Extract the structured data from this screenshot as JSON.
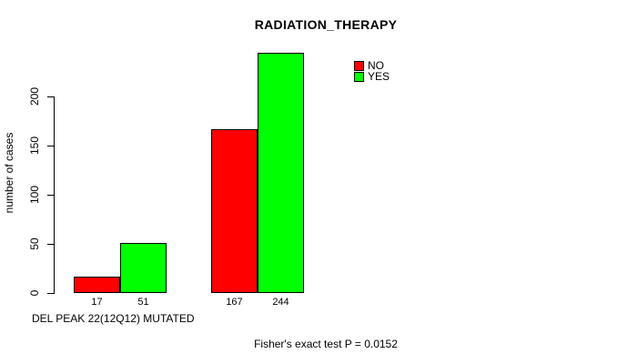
{
  "chart_data": {
    "type": "bar",
    "title": "RADIATION_THERAPY",
    "ylabel": "number of cases",
    "xlabel": "DEL PEAK 22(12Q12) MUTATED",
    "annotation": "Fisher's exact test P = 0.0152",
    "yticks": [
      0,
      50,
      100,
      150,
      200
    ],
    "ylim": [
      0,
      250
    ],
    "grid": false,
    "legend_position": "top-right",
    "categories": [
      "",
      ""
    ],
    "series": [
      {
        "name": "NO",
        "color": "#ff0000",
        "values": [
          17,
          167
        ]
      },
      {
        "name": "YES",
        "color": "#00ff00",
        "values": [
          51,
          244
        ]
      }
    ],
    "bar_value_labels": [
      [
        "17",
        "51"
      ],
      [
        "167",
        "244"
      ]
    ]
  },
  "colors": {
    "background": "#ffffff",
    "text": "#000000",
    "axis": "#000000",
    "bar_border": "#000000",
    "series_no": "#ff0000",
    "series_yes": "#00ff00"
  }
}
